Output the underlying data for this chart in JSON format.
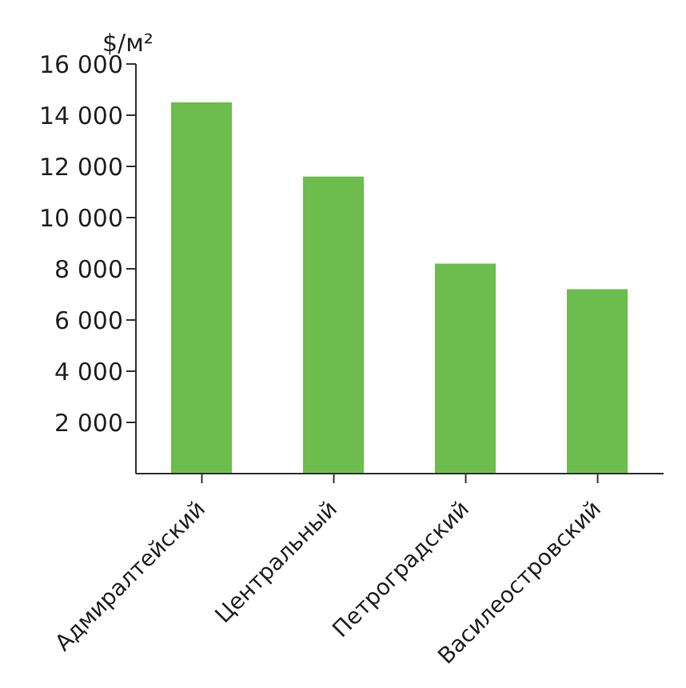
{
  "chart_data": {
    "type": "bar",
    "ylabel": "$/м²",
    "categories": [
      "Адмиралтейский",
      "Центральный",
      "Петроградский",
      "Василеостровский"
    ],
    "values": [
      14500,
      11600,
      8200,
      7200
    ],
    "color": "#6cbd4d",
    "ylim": [
      0,
      16000
    ],
    "yticks": [
      {
        "value": 2000,
        "label": "2 000"
      },
      {
        "value": 4000,
        "label": "4 000"
      },
      {
        "value": 6000,
        "label": "6 000"
      },
      {
        "value": 8000,
        "label": "8 000"
      },
      {
        "value": 10000,
        "label": "10 000"
      },
      {
        "value": 12000,
        "label": "12 000"
      },
      {
        "value": 14000,
        "label": "14 000"
      },
      {
        "value": 16000,
        "label": "16 000"
      }
    ],
    "grid": false
  }
}
